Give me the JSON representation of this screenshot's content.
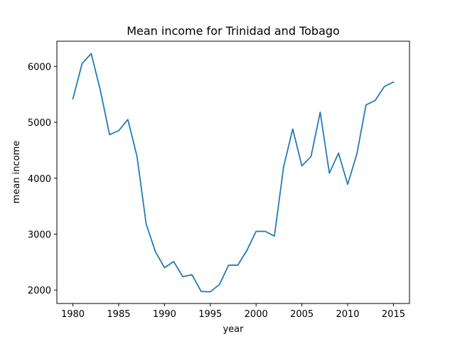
{
  "chart_data": {
    "type": "line",
    "title": "Mean income for Trinidad and Tobago",
    "xlabel": "year",
    "ylabel": "mean income",
    "xlim": [
      1978.25,
      2016.75
    ],
    "ylim": [
      1760,
      6450
    ],
    "xticks": [
      1980,
      1985,
      1990,
      1995,
      2000,
      2005,
      2010,
      2015
    ],
    "yticks": [
      2000,
      3000,
      4000,
      5000,
      6000
    ],
    "grid": false,
    "line_color": "#1f77b4",
    "series": [
      {
        "x": [
          1980,
          1981,
          1982,
          1983,
          1984,
          1985,
          1986,
          1987,
          1988,
          1989,
          1990,
          1991,
          1992,
          1993,
          1994,
          1995,
          1996,
          1997,
          1998,
          1999,
          2000,
          2001,
          2002,
          2003,
          2004,
          2005,
          2006,
          2007,
          2008,
          2009,
          2010,
          2011,
          2012,
          2013,
          2014,
          2015
        ],
        "y": [
          5420,
          6050,
          6230,
          5570,
          4780,
          4850,
          5050,
          4390,
          3180,
          2690,
          2400,
          2510,
          2240,
          2275,
          1975,
          1968,
          2100,
          2445,
          2445,
          2710,
          3050,
          3050,
          2965,
          4200,
          4880,
          4220,
          4390,
          5180,
          4090,
          4450,
          3890,
          4430,
          5310,
          5390,
          5640,
          5720
        ]
      }
    ]
  }
}
